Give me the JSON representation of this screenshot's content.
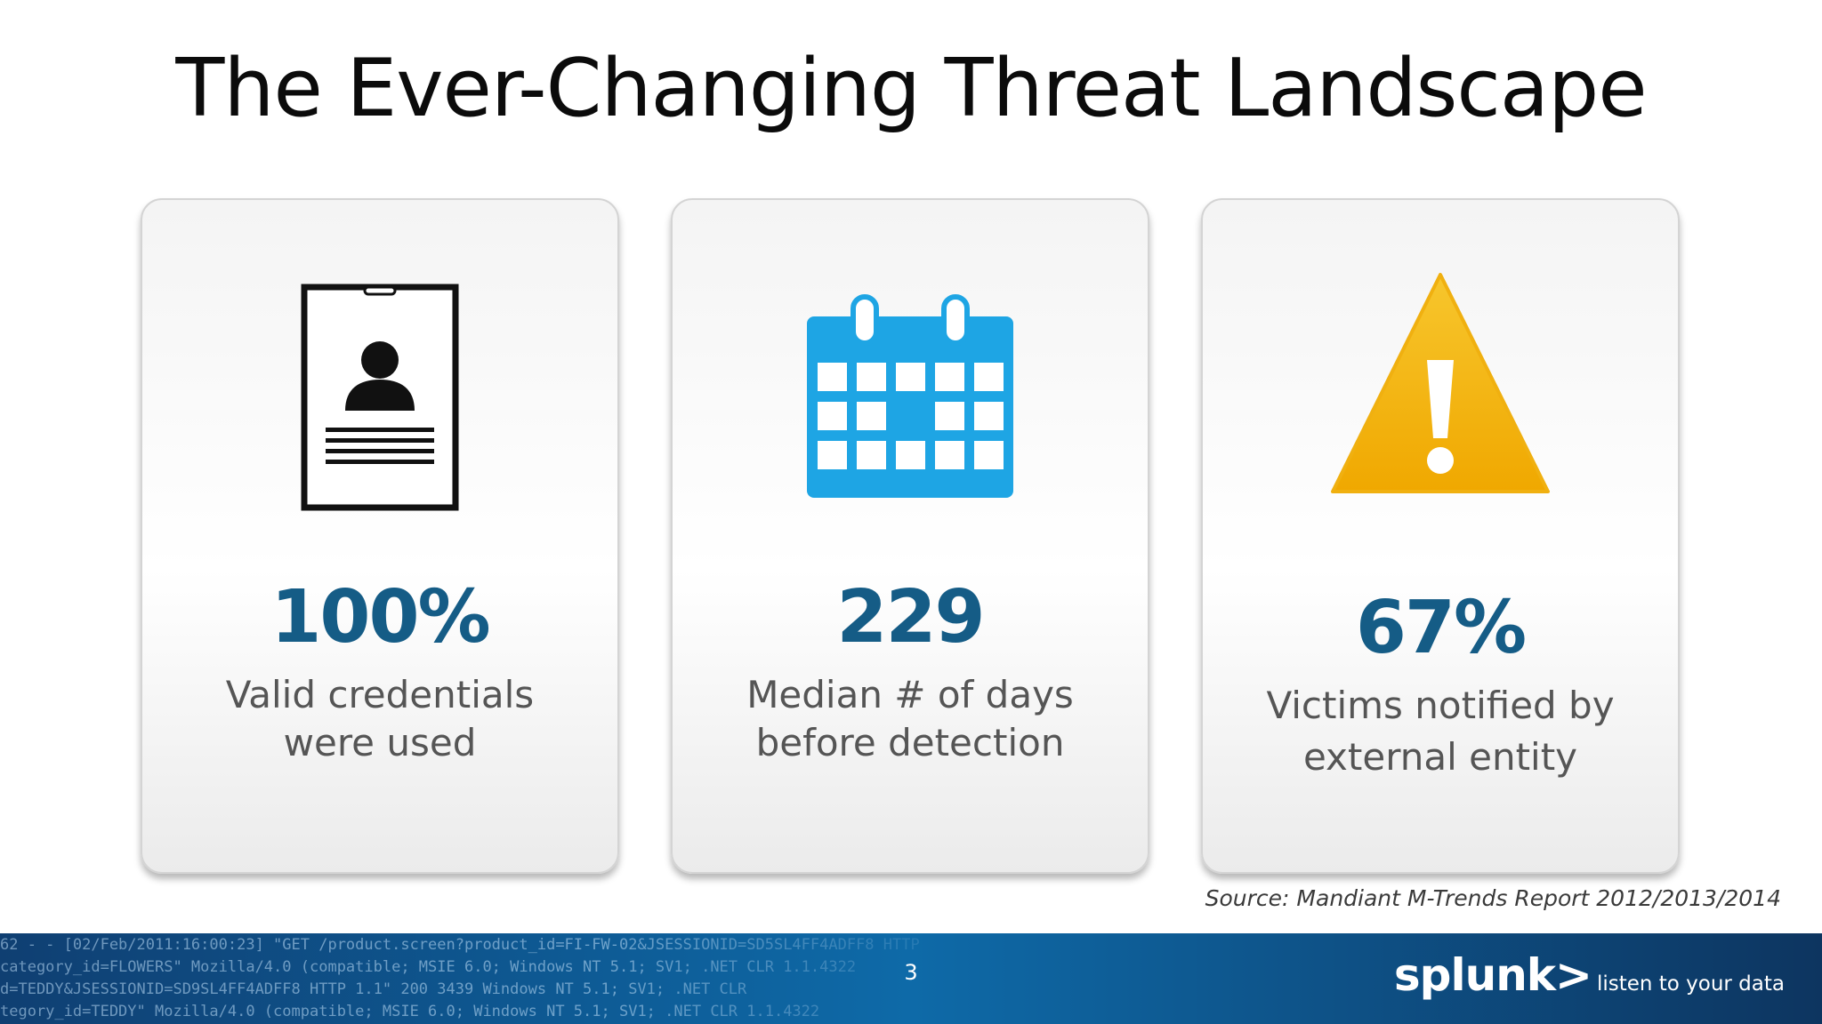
{
  "slide": {
    "title": "The Ever-Changing Threat Landscape"
  },
  "cards": [
    {
      "icon": "id-badge-icon",
      "stat": "100%",
      "desc_line1": "Valid credentials",
      "desc_line2": "were used"
    },
    {
      "icon": "calendar-icon",
      "stat": "229",
      "desc_line1": "Median # of days",
      "desc_line2": "before detection"
    },
    {
      "icon": "warning-icon",
      "stat": "67%",
      "desc_line1": "Victims notified by",
      "desc_line2": "external entity"
    }
  ],
  "source": "Source: Mandiant M-Trends Report 2012/2013/2014",
  "footer": {
    "page_number": "3",
    "brand_logo": "splunk>",
    "brand_tagline": "listen to your data",
    "log_lines": [
      "62 - - [02/Feb/2011:16:00:23] \"GET /product.screen?product_id=FI-FW-02&JSESSIONID=SD5SL4FF4ADFF8 HTTP",
      "category_id=FLOWERS\" Mozilla/4.0 (compatible; MSIE 6.0; Windows NT 5.1; SV1; .NET CLR 1.1.4322",
      "d=TEDDY&JSESSIONID=SD9SL4FF4ADFF8 HTTP 1.1\" 200 3439 Windows NT 5.1; SV1; .NET CLR",
      "tegory_id=TEDDY\" Mozilla/4.0 (compatible; MSIE 6.0; Windows NT 5.1; SV1; .NET CLR 1.1.4322"
    ]
  },
  "colors": {
    "stat": "#155c86",
    "calendar": "#1ea5e4",
    "warning": "#f2b10b",
    "footer": "#0e6aa8"
  }
}
